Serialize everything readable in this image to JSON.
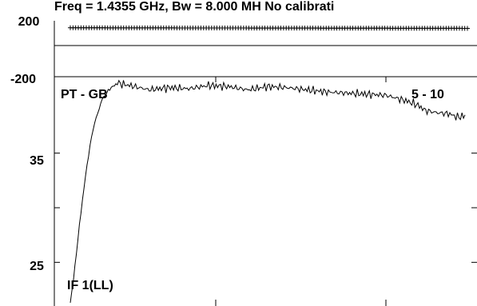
{
  "chart_data": [
    {
      "type": "scatter",
      "title": "Freq = 1.4355 GHz, Bw = 8.000 MH   No calibrati",
      "ylim": [
        -200,
        200
      ],
      "y_tick_labels": [
        "200",
        "-200"
      ],
      "series": [
        {
          "name": "",
          "marker": "plus",
          "x_start": 0.0,
          "x_end": 1.0,
          "y_start": 150,
          "y_end": 146,
          "count": 150
        }
      ]
    },
    {
      "type": "line",
      "annotations": {
        "left": "PT - GB",
        "right": "5 - 10",
        "bottom": "IF 1(LL)"
      },
      "ylim": [
        21,
        42
      ],
      "y_ticks": [
        25,
        30,
        35
      ],
      "y_tick_labels": [
        "35",
        "25"
      ],
      "series": [
        {
          "name": "",
          "x": [
            0.0,
            0.01,
            0.02,
            0.03,
            0.04,
            0.05,
            0.06,
            0.07,
            0.08,
            0.1,
            0.12,
            0.15,
            0.2,
            0.25,
            0.3,
            0.35,
            0.4,
            0.45,
            0.5,
            0.55,
            0.6,
            0.65,
            0.7,
            0.75,
            0.8,
            0.85,
            0.88,
            0.9,
            0.93,
            0.96,
            0.98,
            1.0
          ],
          "y": [
            21.3,
            24.0,
            27.4,
            30.5,
            33.3,
            35.7,
            37.6,
            38.7,
            39.9,
            40.9,
            41.4,
            41.2,
            40.8,
            41.0,
            40.9,
            41.2,
            41.1,
            40.8,
            41.1,
            41.0,
            40.8,
            40.6,
            40.5,
            40.4,
            40.3,
            39.8,
            39.4,
            38.9,
            38.7,
            38.6,
            38.3,
            38.4
          ]
        }
      ]
    }
  ]
}
